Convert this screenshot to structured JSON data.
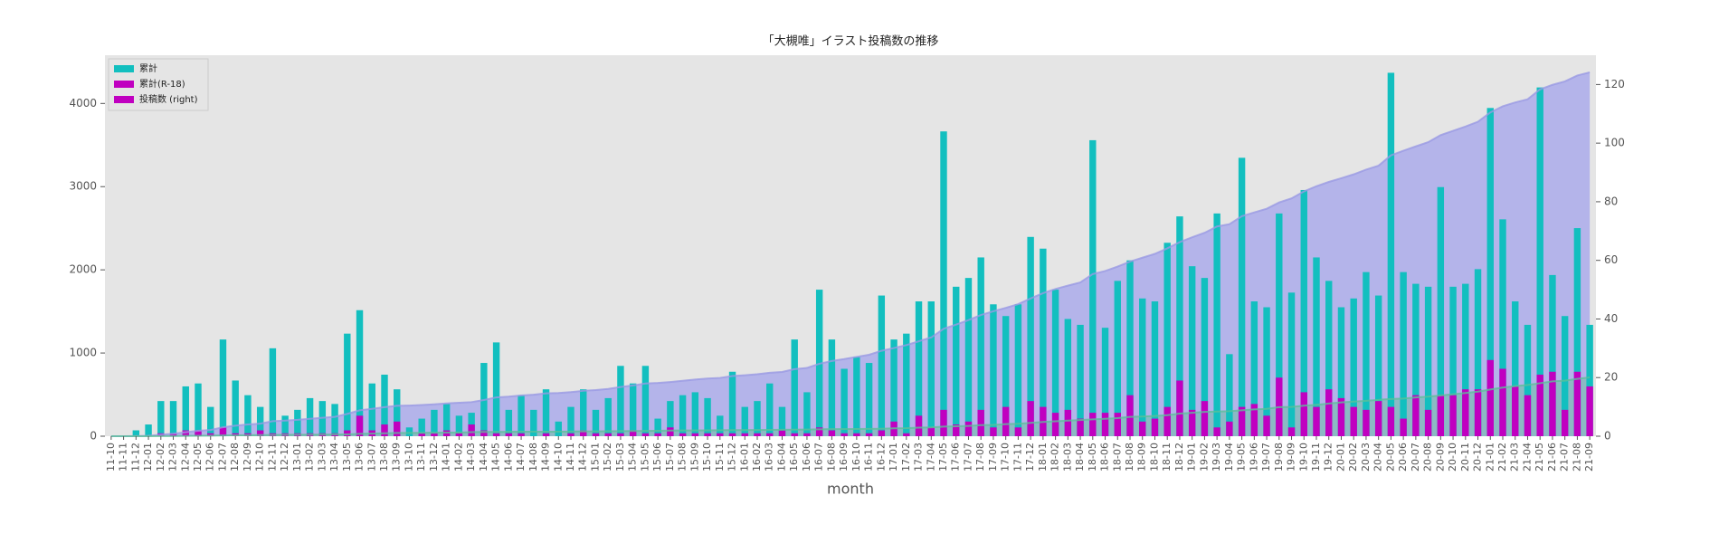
{
  "chart_data": {
    "type": "bar",
    "title": "「大槻唯」イラスト投稿数の推移",
    "x_label": "month",
    "categories": [
      "11-10",
      "11-11",
      "11-12",
      "12-01",
      "12-02",
      "12-03",
      "12-04",
      "12-05",
      "12-06",
      "12-07",
      "12-08",
      "12-09",
      "12-10",
      "12-11",
      "12-12",
      "13-01",
      "13-02",
      "13-03",
      "13-04",
      "13-05",
      "13-06",
      "13-07",
      "13-08",
      "13-09",
      "13-10",
      "13-11",
      "13-12",
      "14-01",
      "14-02",
      "14-03",
      "14-04",
      "14-05",
      "14-06",
      "14-07",
      "14-08",
      "14-09",
      "14-10",
      "14-11",
      "14-12",
      "15-01",
      "15-02",
      "15-03",
      "15-04",
      "15-05",
      "15-06",
      "15-07",
      "15-08",
      "15-09",
      "15-10",
      "15-11",
      "15-12",
      "16-01",
      "16-02",
      "16-03",
      "16-04",
      "16-05",
      "16-06",
      "16-07",
      "16-08",
      "16-09",
      "16-10",
      "16-11",
      "16-12",
      "17-01",
      "17-02",
      "17-03",
      "17-04",
      "17-05",
      "17-06",
      "17-07",
      "17-08",
      "17-09",
      "17-10",
      "17-11",
      "17-12",
      "18-01",
      "18-02",
      "18-03",
      "18-04",
      "18-05",
      "18-06",
      "18-07",
      "18-08",
      "18-09",
      "18-10",
      "18-11",
      "18-12",
      "19-01",
      "19-02",
      "19-03",
      "19-04",
      "19-05",
      "19-06",
      "19-07",
      "19-08",
      "19-09",
      "19-10",
      "19-11",
      "19-12",
      "20-01",
      "20-02",
      "20-03",
      "20-04",
      "20-05",
      "20-06",
      "20-07",
      "20-08",
      "20-09",
      "20-10",
      "20-11",
      "20-12",
      "21-01",
      "21-02",
      "21-03",
      "21-04",
      "21-05",
      "21-06",
      "21-07",
      "21-08",
      "21-09"
    ],
    "series": [
      {
        "name": "累計",
        "color": "#12bfbf",
        "axis": "y2",
        "values": [
          0,
          0,
          2,
          4,
          12,
          12,
          17,
          18,
          10,
          33,
          19,
          14,
          10,
          30,
          7,
          9,
          13,
          12,
          11,
          35,
          43,
          18,
          21,
          16,
          3,
          6,
          9,
          11,
          7,
          8,
          25,
          32,
          9,
          14,
          9,
          16,
          5,
          10,
          16,
          9,
          13,
          24,
          18,
          24,
          6,
          12,
          14,
          15,
          13,
          7,
          22,
          10,
          12,
          18,
          10,
          33,
          15,
          50,
          33,
          23,
          27,
          25,
          48,
          33,
          35,
          46,
          46,
          104,
          51,
          54,
          61,
          45,
          41,
          45,
          68,
          64,
          50,
          40,
          38,
          101,
          37,
          53,
          60,
          47,
          46,
          66,
          75,
          58,
          54,
          76,
          28,
          95,
          46,
          44,
          76,
          49,
          84,
          61,
          53,
          44,
          47,
          56,
          48,
          124,
          56,
          52,
          51,
          85,
          51,
          52,
          57,
          112,
          74,
          46,
          38,
          119,
          55,
          41,
          71,
          38
        ]
      },
      {
        "name": "累計(R-18)",
        "color": "#c000c0",
        "axis": "y2",
        "values": [
          0,
          0,
          0,
          0,
          1,
          1,
          2,
          2,
          1,
          3,
          1,
          1,
          2,
          1,
          1,
          1,
          1,
          1,
          1,
          2,
          7,
          2,
          4,
          5,
          0,
          1,
          1,
          2,
          1,
          4,
          2,
          1,
          1,
          1,
          0,
          1,
          0,
          1,
          2,
          1,
          1,
          1,
          2,
          1,
          1,
          3,
          1,
          1,
          1,
          1,
          1,
          1,
          1,
          1,
          2,
          1,
          1,
          3,
          2,
          1,
          1,
          1,
          2,
          5,
          1,
          7,
          3,
          9,
          4,
          5,
          9,
          3,
          10,
          3,
          12,
          10,
          8,
          9,
          6,
          8,
          8,
          8,
          14,
          5,
          6,
          10,
          19,
          9,
          12,
          3,
          5,
          10,
          11,
          7,
          20,
          3,
          15,
          10,
          16,
          13,
          10,
          9,
          12,
          10,
          6,
          14,
          9,
          14,
          14,
          16,
          16,
          26,
          23,
          17,
          14,
          21,
          22,
          9,
          22,
          17
        ]
      }
    ],
    "area_series": [
      {
        "color": "#9a9ae4",
        "fill": "#b4b4ea",
        "values": [
          0,
          0,
          2,
          6,
          18,
          30,
          47,
          65,
          75,
          108,
          127,
          141,
          151,
          181,
          188,
          197,
          210,
          222,
          233,
          268,
          311,
          329,
          350,
          366,
          369,
          375,
          384,
          395,
          402,
          410,
          435,
          467,
          476,
          490,
          499,
          515,
          520,
          530,
          546,
          555,
          568,
          592,
          610,
          634,
          640,
          652,
          666,
          681,
          694,
          701,
          723,
          733,
          745,
          763,
          773,
          806,
          821,
          871,
          904,
          927,
          954,
          979,
          1027,
          1060,
          1095,
          1141,
          1187,
          1291,
          1342,
          1396,
          1457,
          1502,
          1543,
          1588,
          1656,
          1720,
          1770,
          1810,
          1848,
          1949,
          1986,
          2039,
          2099,
          2146,
          2192,
          2258,
          2333,
          2391,
          2445,
          2521,
          2549,
          2644,
          2690,
          2734,
          2810,
          2859,
          2943,
          3004,
          3057,
          3101,
          3148,
          3204,
          3252,
          3376,
          3432,
          3484,
          3535,
          3620,
          3671,
          3723,
          3780,
          3892,
          3966,
          4012,
          4050,
          4169,
          4224,
          4265,
          4336,
          4374
        ]
      },
      {
        "color": "#5cbf9a",
        "fill": "rgba(90,190,150,0.45)",
        "values": [
          0,
          0,
          0,
          0,
          1,
          2,
          4,
          6,
          7,
          10,
          11,
          12,
          14,
          15,
          16,
          17,
          18,
          19,
          20,
          22,
          29,
          31,
          35,
          40,
          40,
          41,
          42,
          44,
          45,
          49,
          51,
          52,
          53,
          54,
          54,
          55,
          55,
          56,
          58,
          59,
          60,
          61,
          63,
          64,
          65,
          68,
          69,
          70,
          71,
          72,
          73,
          74,
          75,
          76,
          78,
          79,
          80,
          83,
          85,
          86,
          87,
          88,
          90,
          95,
          96,
          103,
          106,
          115,
          119,
          124,
          133,
          136,
          146,
          149,
          161,
          171,
          179,
          188,
          194,
          202,
          210,
          218,
          232,
          237,
          243,
          253,
          272,
          281,
          293,
          296,
          301,
          311,
          322,
          329,
          349,
          352,
          367,
          377,
          393,
          406,
          416,
          425,
          437,
          447,
          453,
          467,
          476,
          490,
          504,
          520,
          536,
          562,
          585,
          602,
          616,
          637,
          659,
          668,
          690,
          707
        ]
      }
    ],
    "legend": [
      {
        "label": "累計",
        "color": "#12bfbf"
      },
      {
        "label": "累計(R-18)",
        "color": "#c000c0"
      },
      {
        "label": "投稿数 (right)",
        "color": "#c000c0"
      }
    ],
    "ylim": [
      0,
      4580
    ],
    "yticks": [
      0,
      1000,
      2000,
      3000,
      4000
    ],
    "y2lim": [
      0,
      130
    ],
    "y2ticks": [
      0,
      20,
      40,
      60,
      80,
      100,
      120
    ],
    "grid": false,
    "legend_position": "upper left"
  }
}
